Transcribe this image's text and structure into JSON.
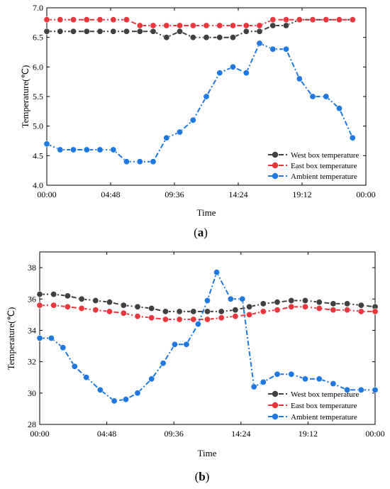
{
  "chart_data": [
    {
      "type": "line",
      "panel_label": {
        "open": "(",
        "letter": "a",
        "close": ")"
      },
      "xlabel": "Time",
      "ylabel": "Temperature(℃)",
      "ylim": [
        4.0,
        7.0
      ],
      "xlim": [
        0,
        1440
      ],
      "yticks": [
        "4.0",
        "4.5",
        "5.0",
        "5.5",
        "6.0",
        "6.5",
        "7.0"
      ],
      "xticks": [
        "00:00",
        "04:48",
        "09:36",
        "14:24",
        "19:12",
        "00:00"
      ],
      "legend_position": "bottom-right",
      "series": [
        {
          "name": "West box temperature",
          "color": "#404040",
          "x": [
            0,
            60,
            120,
            180,
            240,
            300,
            360,
            420,
            480,
            540,
            600,
            660,
            720,
            780,
            840,
            900,
            960,
            1020,
            1080,
            1140,
            1200,
            1260,
            1320,
            1380
          ],
          "values": [
            6.6,
            6.6,
            6.6,
            6.6,
            6.6,
            6.6,
            6.6,
            6.6,
            6.6,
            6.5,
            6.6,
            6.5,
            6.5,
            6.5,
            6.5,
            6.6,
            6.6,
            6.7,
            6.7,
            6.8,
            6.8,
            6.8,
            6.8,
            6.8
          ]
        },
        {
          "name": "East box temperature",
          "color": "#e8383d",
          "x": [
            0,
            60,
            120,
            180,
            240,
            300,
            360,
            420,
            480,
            540,
            600,
            660,
            720,
            780,
            840,
            900,
            960,
            1020,
            1080,
            1140,
            1200,
            1260,
            1320,
            1380
          ],
          "values": [
            6.8,
            6.8,
            6.8,
            6.8,
            6.8,
            6.8,
            6.8,
            6.7,
            6.7,
            6.7,
            6.7,
            6.7,
            6.7,
            6.7,
            6.7,
            6.7,
            6.7,
            6.8,
            6.8,
            6.8,
            6.8,
            6.8,
            6.8,
            6.8
          ]
        },
        {
          "name": "Ambient temperature",
          "color": "#1f77e0",
          "x": [
            0,
            60,
            120,
            180,
            240,
            300,
            360,
            420,
            480,
            540,
            600,
            660,
            720,
            780,
            840,
            900,
            960,
            1020,
            1080,
            1140,
            1200,
            1260,
            1320,
            1380
          ],
          "values": [
            4.7,
            4.6,
            4.6,
            4.6,
            4.6,
            4.6,
            4.4,
            4.4,
            4.4,
            4.8,
            4.9,
            5.1,
            5.5,
            5.9,
            6.0,
            5.9,
            6.4,
            6.3,
            6.3,
            5.8,
            5.5,
            5.5,
            5.3,
            4.8
          ]
        }
      ]
    },
    {
      "type": "line",
      "panel_label": {
        "open": "(",
        "letter": "b",
        "close": ")"
      },
      "xlabel": "Time",
      "ylabel": "Temperature(℃)",
      "ylim": [
        28,
        39
      ],
      "xlim": [
        0,
        1440
      ],
      "yticks": [
        "28",
        "30",
        "32",
        "34",
        "36",
        "38"
      ],
      "xticks": [
        "00:00",
        "04:48",
        "09:36",
        "14:24",
        "19:12",
        "00:00"
      ],
      "legend_position": "bottom-right",
      "series": [
        {
          "name": "West box temperature",
          "color": "#404040",
          "x": [
            0,
            60,
            120,
            180,
            240,
            300,
            360,
            420,
            480,
            540,
            600,
            660,
            720,
            780,
            840,
            900,
            960,
            1020,
            1080,
            1140,
            1200,
            1260,
            1320,
            1380,
            1440
          ],
          "values": [
            36.3,
            36.3,
            36.2,
            36.0,
            35.9,
            35.8,
            35.6,
            35.5,
            35.4,
            35.2,
            35.2,
            35.2,
            35.2,
            35.2,
            35.3,
            35.5,
            35.7,
            35.8,
            35.9,
            35.9,
            35.8,
            35.7,
            35.7,
            35.6,
            35.5
          ]
        },
        {
          "name": "East box temperature",
          "color": "#e8383d",
          "x": [
            0,
            60,
            120,
            180,
            240,
            300,
            360,
            420,
            480,
            540,
            600,
            660,
            720,
            780,
            840,
            900,
            960,
            1020,
            1080,
            1140,
            1200,
            1260,
            1320,
            1380,
            1440
          ],
          "values": [
            35.6,
            35.6,
            35.5,
            35.4,
            35.3,
            35.2,
            35.1,
            34.9,
            34.8,
            34.7,
            34.7,
            34.7,
            34.7,
            34.8,
            34.9,
            35.0,
            35.2,
            35.3,
            35.5,
            35.5,
            35.4,
            35.3,
            35.3,
            35.2,
            35.2
          ]
        },
        {
          "name": "Ambient temperature",
          "color": "#1f77e0",
          "x": [
            0,
            50,
            100,
            150,
            200,
            260,
            320,
            370,
            420,
            480,
            530,
            580,
            630,
            680,
            720,
            760,
            820,
            870,
            920,
            960,
            1020,
            1080,
            1140,
            1200,
            1260,
            1320,
            1380,
            1440
          ],
          "values": [
            33.5,
            33.5,
            32.9,
            31.7,
            31.0,
            30.2,
            29.5,
            29.6,
            30.0,
            30.9,
            31.9,
            33.1,
            33.1,
            34.4,
            35.9,
            37.7,
            36.0,
            36.0,
            30.4,
            30.7,
            31.2,
            31.2,
            30.9,
            30.9,
            30.6,
            30.2,
            30.2,
            30.2
          ]
        }
      ]
    }
  ]
}
